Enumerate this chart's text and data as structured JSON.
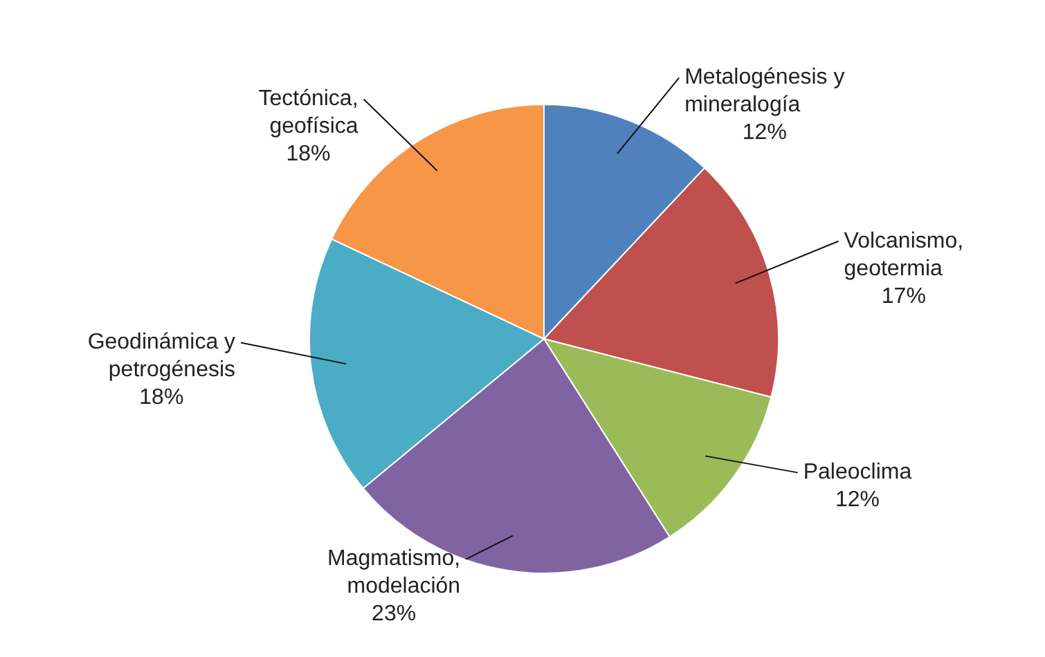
{
  "chart_data": {
    "type": "pie",
    "categories": [
      "Metalogénesis y mineralogía",
      "Volcanismo, geotermia",
      "Paleoclima",
      "Magmatismo, modelación",
      "Geodinámica y petrogénesis",
      "Tectónica, geofísica"
    ],
    "values": [
      12,
      17,
      12,
      23,
      18,
      18
    ],
    "colors": [
      "#4f81bd",
      "#c0504d",
      "#9bbb59",
      "#8064a2",
      "#4bacc6",
      "#f79646"
    ],
    "value_labels": [
      "12%",
      "17%",
      "12%",
      "23%",
      "18%",
      "18%"
    ],
    "legend": false
  }
}
